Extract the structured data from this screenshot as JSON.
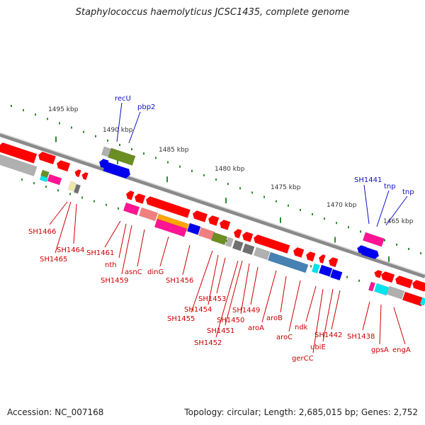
{
  "header": {
    "title": "Staphylococcus haemolyticus JCSC1435, complete genome"
  },
  "footer": {
    "accession": "Accession: NC_007168",
    "summary": "Topology: circular; Length: 2,685,015 bp; Genes: 2,752"
  },
  "colors": {
    "backbone": "#8a8a8a",
    "forward_feature": "#ff0000",
    "reverse_feature": "#0000ee",
    "tick": "#2e8b2e",
    "tick_label": "#333333",
    "label_blue": "#1010c0",
    "label_red": "#cc0000",
    "category_olive": "#6b8e23",
    "category_magenta": "#ff1493",
    "category_gray": "#b0b0b0",
    "category_cyan": "#00e5ee",
    "category_salmon": "#f08080",
    "category_steel": "#4682b4",
    "category_orange": "#ffa500",
    "category_darkgray": "#707070",
    "category_khaki": "#eee8aa"
  },
  "scale_labels": [
    "1495 kbp",
    "1490 kbp",
    "1485 kbp",
    "1480 kbp",
    "1475 kbp",
    "1470 kbp",
    "1465 kbp"
  ],
  "gene_labels_top": [
    "recU",
    "pbp2",
    "SH1441",
    "tnp",
    "tnp"
  ],
  "gene_labels_bottom": [
    "SH1466",
    "SH1465",
    "SH1464",
    "SH1461",
    "nth",
    "SH1459",
    "asnC",
    "dinG",
    "SH1456",
    "SH1455",
    "SH1454",
    "SH1453",
    "SH1452",
    "SH1451",
    "SH1450",
    "SH1449",
    "aroA",
    "aroB",
    "aroC",
    "ndk",
    "gerCC",
    "ubiE",
    "SH1442",
    "SH1438",
    "gpsA",
    "engA"
  ]
}
